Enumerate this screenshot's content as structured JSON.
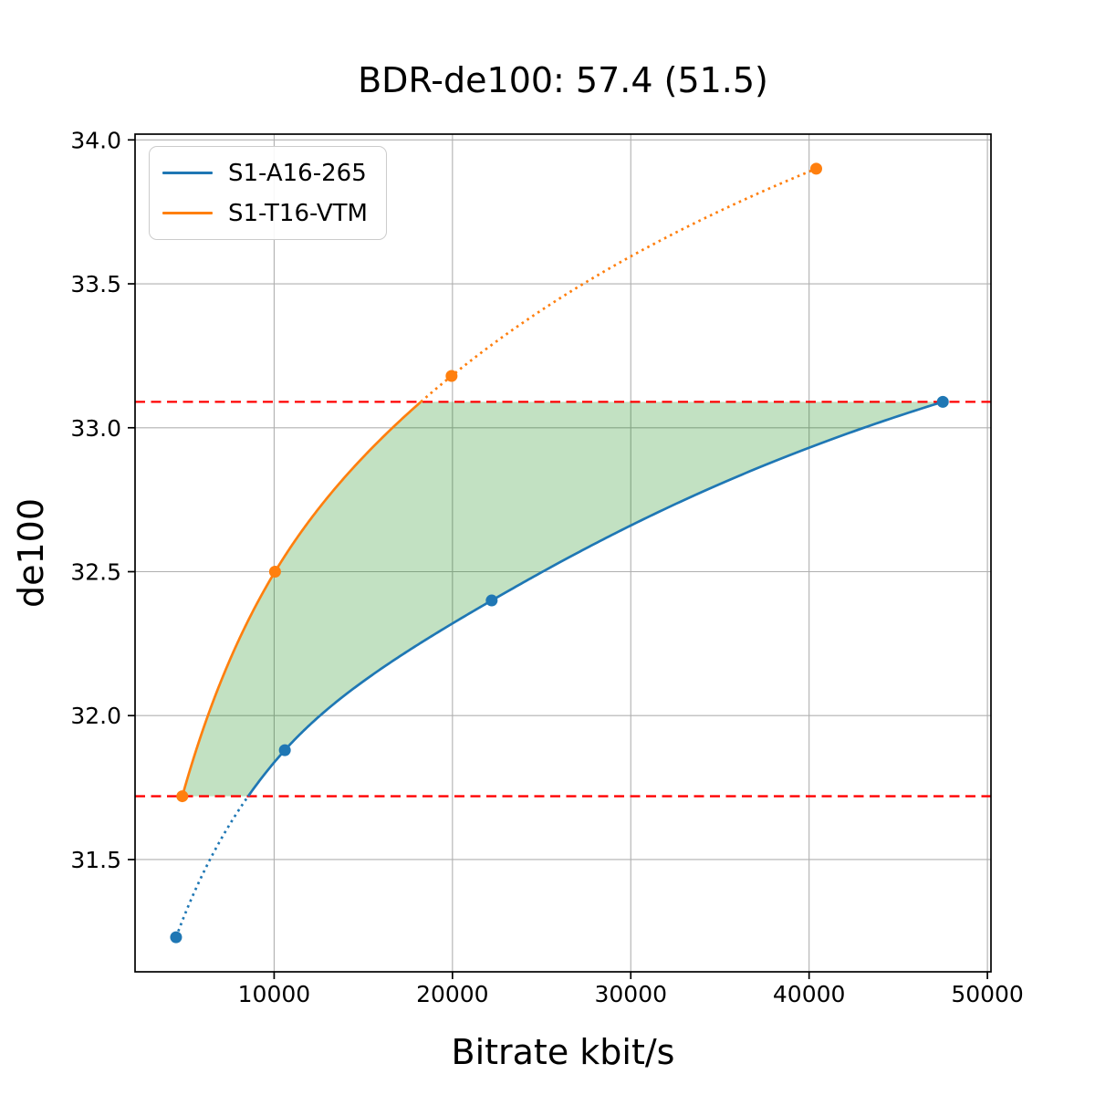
{
  "chart_data": {
    "type": "line",
    "title": "BDR-de100: 57.4 (51.5)",
    "xlabel": "Bitrate kbit/s",
    "ylabel": "de100",
    "xlim": [
      2200,
      50200
    ],
    "ylim": [
      31.11,
      34.02
    ],
    "xticks": [
      10000,
      20000,
      30000,
      40000,
      50000
    ],
    "xtick_labels": [
      "10000",
      "20000",
      "30000",
      "40000",
      "50000"
    ],
    "yticks": [
      31.5,
      32.0,
      32.5,
      33.0,
      33.5,
      34.0
    ],
    "ytick_labels": [
      "31.5",
      "32.0",
      "32.5",
      "33.0",
      "33.5",
      "34.0"
    ],
    "grid": true,
    "grid_color": "#b0b0b0",
    "legend_position": "upper left",
    "series": [
      {
        "name": "S1-A16-265",
        "color": "#1f77b4",
        "marker": "circle",
        "line_style": "solid, dotted below lower bound",
        "points": [
          [
            4500,
            31.23
          ],
          [
            10600,
            31.88
          ],
          [
            22200,
            32.4
          ],
          [
            47500,
            33.09
          ]
        ]
      },
      {
        "name": "S1-T16-VTM",
        "color": "#ff7f0e",
        "marker": "circle",
        "line_style": "solid, dotted above upper bound",
        "points": [
          [
            4850,
            31.72
          ],
          [
            10050,
            32.5
          ],
          [
            19950,
            33.18
          ],
          [
            40400,
            33.9
          ]
        ]
      }
    ],
    "bounds": {
      "lower": 31.72,
      "upper": 33.09,
      "line_color": "#ff0000",
      "line_style": "dashed"
    },
    "fill_between": {
      "color": "#008000",
      "opacity": 0.24
    }
  }
}
